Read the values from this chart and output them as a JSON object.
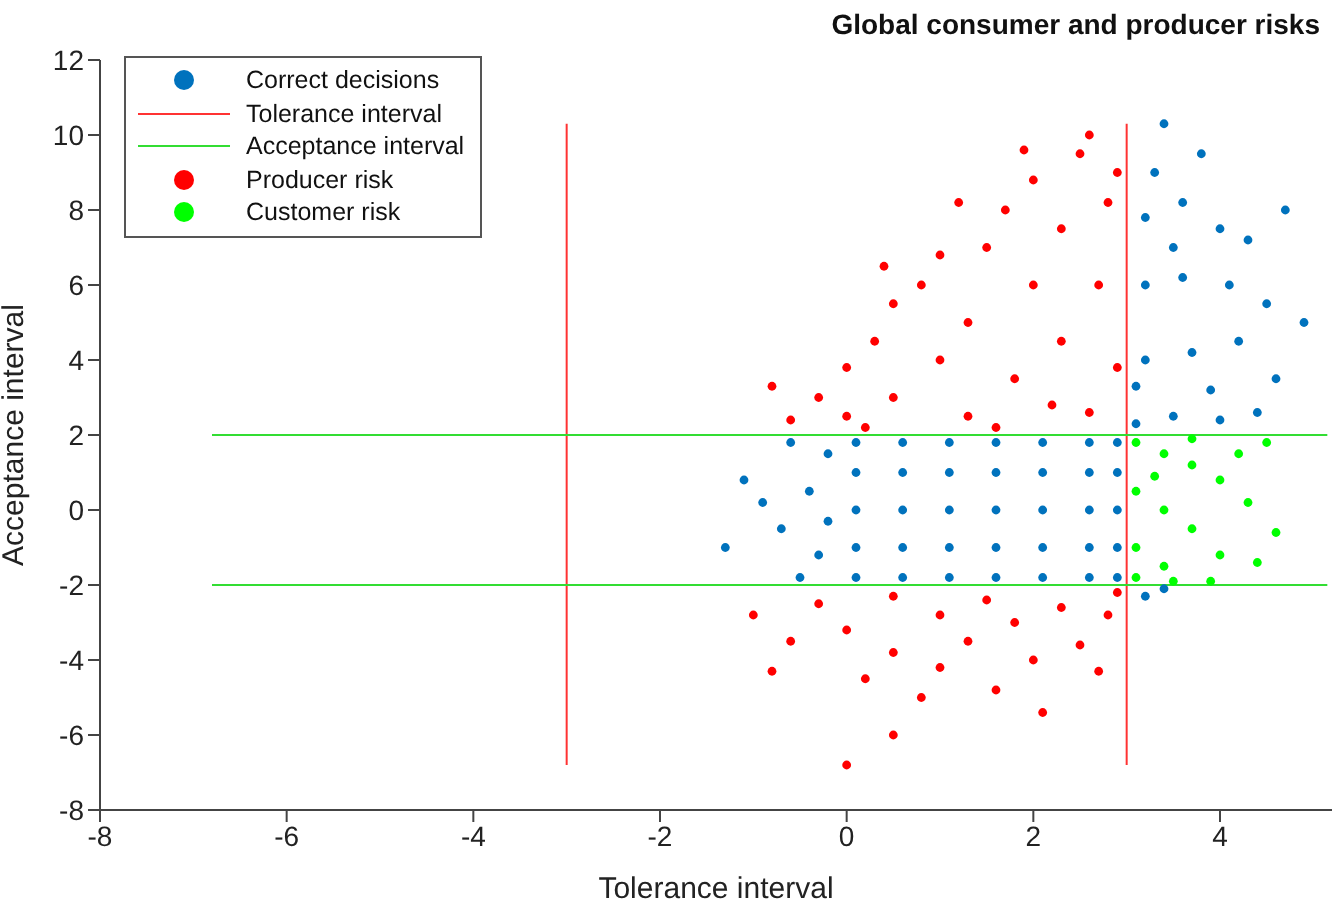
{
  "chart_data": {
    "type": "scatter",
    "title": "Global consumer and producer risks",
    "xlabel": "Tolerance interval",
    "ylabel": "Acceptance interval",
    "xlim": [
      -8,
      5.2
    ],
    "xticks": [
      -8,
      -6,
      -4,
      -2,
      0,
      2,
      4
    ],
    "ylim": [
      -8,
      12
    ],
    "yticks": [
      -8,
      -6,
      -4,
      -2,
      0,
      2,
      4,
      6,
      8,
      10,
      12
    ],
    "legend": "top left",
    "marker": "circle",
    "series": [
      {
        "name": "Correct decisions",
        "color": "#0072bd",
        "x": [
          0.1,
          0.6,
          1.1,
          1.6,
          2.1,
          2.6,
          2.9,
          0.1,
          0.6,
          1.1,
          1.6,
          2.1,
          2.6,
          2.9,
          0.1,
          0.6,
          1.1,
          1.6,
          2.1,
          2.6,
          2.9,
          0.1,
          0.6,
          1.1,
          1.6,
          2.1,
          2.6,
          2.9,
          0.1,
          0.6,
          1.1,
          1.6,
          2.1,
          2.6,
          2.9,
          -0.2,
          -0.4,
          -0.3,
          -0.6,
          -0.7,
          -0.9,
          -1.1,
          -1.3,
          -0.5,
          -0.2,
          3.1,
          3.5,
          4,
          4.4,
          3.2,
          3.7,
          4.2,
          4.6,
          3.2,
          3.6,
          4.1,
          4.5,
          3.2,
          3.6,
          4,
          3.3,
          3.4,
          3.8,
          4.7,
          4.9,
          3.1,
          3.9,
          3.5,
          4.3,
          3.2,
          3.4
        ],
        "values": [
          -1.8,
          -1.8,
          -1.8,
          -1.8,
          -1.8,
          -1.8,
          -1.8,
          -1,
          -1,
          -1,
          -1,
          -1,
          -1,
          -1,
          0,
          0,
          0,
          0,
          0,
          0,
          0,
          1,
          1,
          1,
          1,
          1,
          1,
          1,
          1.8,
          1.8,
          1.8,
          1.8,
          1.8,
          1.8,
          1.8,
          1.5,
          0.5,
          -1.2,
          1.8,
          -0.5,
          0.2,
          0.8,
          -1,
          -1.8,
          -0.3,
          2.3,
          2.5,
          2.4,
          2.6,
          4,
          4.2,
          4.5,
          3.5,
          6,
          6.2,
          6,
          5.5,
          7.8,
          8.2,
          7.5,
          9,
          10.3,
          9.5,
          8,
          5,
          3.3,
          3.2,
          7,
          7.2,
          -2.3,
          -2.1
        ]
      },
      {
        "name": "Tolerance interval",
        "type": "line",
        "marker": "none",
        "color": "#ff3333",
        "x": [
          -3,
          -3
        ],
        "values": [
          -6.8,
          10.3
        ]
      },
      {
        "type": "line",
        "marker": "none",
        "color": "#ff3333",
        "x": [
          3,
          3
        ],
        "values": [
          -6.8,
          10.3
        ]
      },
      {
        "name": "Acceptance interval",
        "type": "line",
        "marker": "none",
        "color": "#33dd33",
        "x": [
          -6.8,
          5.15
        ],
        "values": [
          2,
          2
        ]
      },
      {
        "type": "line",
        "marker": "none",
        "color": "#33dd33",
        "x": [
          -6.8,
          5.15
        ],
        "values": [
          -2,
          -2
        ]
      },
      {
        "name": "Producer risk",
        "color": "#ff0000",
        "x": [
          -0.6,
          -0.3,
          0,
          0,
          0.3,
          0.5,
          0.5,
          0.8,
          1,
          1,
          1.3,
          1.3,
          1.5,
          1.7,
          1.8,
          2,
          2,
          2.3,
          2.3,
          2.5,
          2.6,
          2.7,
          2.8,
          2.9,
          2.9,
          0.2,
          1.6,
          2.2,
          -0.8,
          0.4,
          1.2,
          1.9,
          2.6,
          -1,
          -0.6,
          -0.3,
          0,
          0.2,
          0.5,
          0.5,
          0.8,
          1,
          1,
          1.3,
          1.5,
          1.6,
          1.8,
          2,
          2.3,
          2.5,
          2.8,
          2.9,
          0,
          0.5,
          2.1,
          2.7,
          -0.8
        ],
        "values": [
          2.4,
          3,
          2.5,
          3.8,
          4.5,
          3,
          5.5,
          6,
          4,
          6.8,
          2.5,
          5,
          7,
          8,
          3.5,
          6,
          8.8,
          4.5,
          7.5,
          9.5,
          2.6,
          6,
          8.2,
          3.8,
          9,
          2.2,
          2.2,
          2.8,
          3.3,
          6.5,
          8.2,
          9.6,
          10,
          -2.8,
          -3.5,
          -2.5,
          -3.2,
          -4.5,
          -2.3,
          -3.8,
          -5,
          -2.8,
          -4.2,
          -3.5,
          -2.4,
          -4.8,
          -3,
          -4,
          -2.6,
          -3.6,
          -2.8,
          -2.2,
          -6.8,
          -6,
          -5.4,
          -4.3,
          -4.3
        ]
      },
      {
        "name": "Customer risk",
        "color": "#00ff00",
        "x": [
          3.1,
          3.1,
          3.1,
          3.1,
          3.4,
          3.4,
          3.4,
          3.7,
          3.7,
          3.7,
          4,
          4,
          4.2,
          4.3,
          4.5,
          4.6,
          3.9,
          3.5,
          4.4,
          3.3
        ],
        "values": [
          1.8,
          0.5,
          -1,
          -1.8,
          1.5,
          0,
          -1.5,
          1.2,
          -0.5,
          1.9,
          0.8,
          -1.2,
          1.5,
          0.2,
          1.8,
          -0.6,
          -1.9,
          -1.9,
          -1.4,
          0.9
        ]
      }
    ]
  }
}
